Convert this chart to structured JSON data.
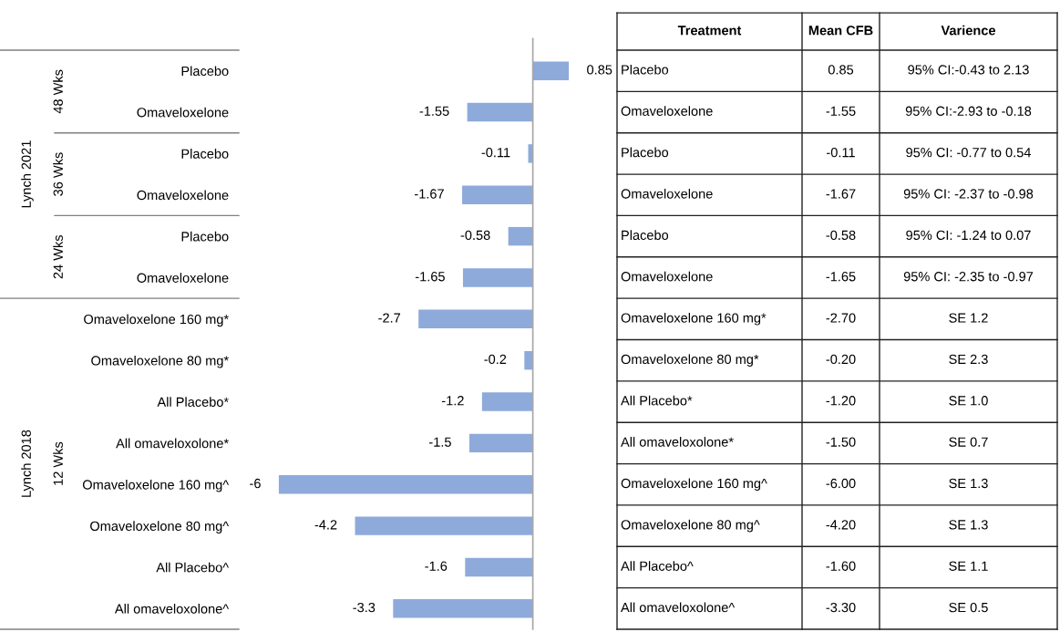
{
  "chart_data": {
    "type": "bar",
    "orientation": "horizontal",
    "color": "#8eaadb",
    "data_labels": true,
    "tick_labels": "y",
    "categories": [
      "Placebo",
      "Omaveloxelone",
      "Placebo",
      "Omaveloxelone",
      "Placebo",
      "Omaveloxelone",
      "Omaveloxelone 160 mg*",
      "Omaveloxelone 80 mg*",
      "All Placebo*",
      "All omaveloxolone*",
      "Omaveloxelone 160 mg^",
      "Omaveloxelone 80 mg^",
      "All Placebo^",
      "All omaveloxolone^"
    ],
    "values": [
      0.85,
      -1.55,
      -0.11,
      -1.67,
      -0.58,
      -1.65,
      -2.7,
      -0.2,
      -1.2,
      -1.5,
      -6,
      -4.2,
      -1.6,
      -3.3
    ],
    "annotations": [
      "Lynch 2021",
      "48 Wks",
      "36 Wks",
      "24 Wks",
      "Lynch 2018",
      "12 Wks",
      "Treatment",
      "Mean CFB",
      "Varience",
      "0.85",
      "-1.55",
      "-0.11",
      "-1.67",
      "-0.58",
      "-1.65",
      "-2.70",
      "-0.20",
      "-1.20",
      "-1.50",
      "-6.00",
      "-4.20",
      "-1.60",
      "-3.30",
      "95% CI:-0.43 to 2.13",
      "95% CI:-2.93 to -0.18",
      "95% CI: -0.77 to 0.54",
      "95% CI: -2.37 to -0.98",
      "95% CI: -1.24 to 0.07",
      "95% CI: -2.35 to -0.97",
      "SE 1.2",
      "SE 2.3",
      "SE 1.0",
      "SE 0.7",
      "SE 1.3",
      "SE 1.3",
      "SE 1.1",
      "SE 0.5"
    ]
  }
}
